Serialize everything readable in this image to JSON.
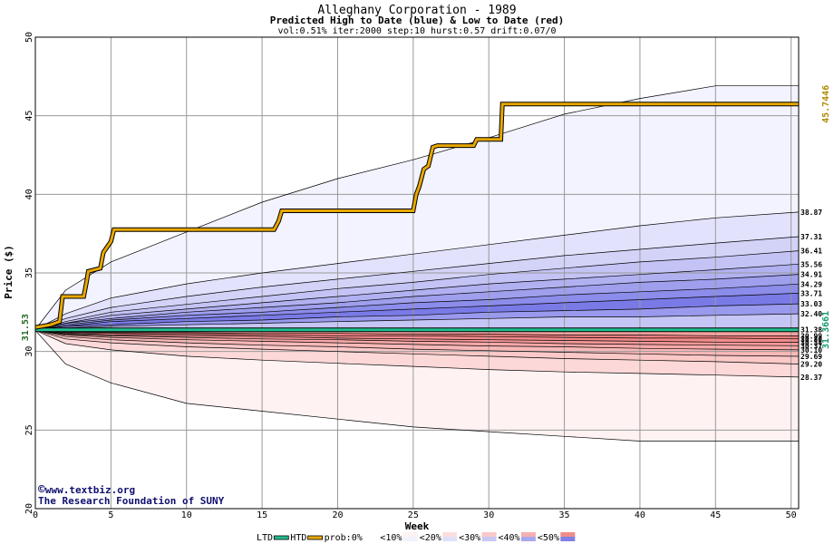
{
  "chart_data": {
    "type": "area",
    "title": "Alleghany Corporation - 1989",
    "subtitle": "Predicted High to Date (blue) &  Low to Date (red)",
    "params": "vol:0.51% iter:2000 step:10 hurst:0.57 drift:0.07/0",
    "xlabel": "Week",
    "ylabel": "Price ($)",
    "xlim": [
      0,
      50.5
    ],
    "ylim": [
      20,
      50
    ],
    "x_ticks": [
      0,
      5,
      10,
      15,
      20,
      25,
      30,
      35,
      40,
      45,
      50
    ],
    "y_ticks": [
      20,
      25,
      30,
      35,
      40,
      45,
      50
    ],
    "grid": true,
    "start_value": "31.53",
    "ltd_current": "31.3661",
    "htd_current": "45.7446",
    "htd_bands": {
      "x": [
        0,
        2,
        5,
        10,
        15,
        20,
        25,
        30,
        35,
        40,
        45,
        50.5
      ],
      "levels": [
        {
          "label": "",
          "values": [
            31.4,
            33.9,
            35.7,
            37.6,
            39.5,
            41.0,
            42.2,
            43.6,
            45.1,
            46.1,
            46.9,
            46.9
          ]
        },
        {
          "label": "38.87",
          "values": [
            31.4,
            32.4,
            33.4,
            34.3,
            35.0,
            35.6,
            36.2,
            36.8,
            37.4,
            38.0,
            38.5,
            38.87
          ]
        },
        {
          "label": "37.31",
          "values": [
            31.4,
            32.1,
            32.8,
            33.5,
            34.1,
            34.6,
            35.1,
            35.6,
            36.1,
            36.5,
            36.9,
            37.31
          ]
        },
        {
          "label": "36.41",
          "values": [
            31.4,
            31.9,
            32.5,
            33.0,
            33.5,
            34.0,
            34.4,
            34.9,
            35.3,
            35.7,
            36.0,
            36.41
          ]
        },
        {
          "label": "35.56",
          "values": [
            31.4,
            31.8,
            32.3,
            32.7,
            33.1,
            33.5,
            33.9,
            34.3,
            34.6,
            34.9,
            35.2,
            35.56
          ]
        },
        {
          "label": "34.91",
          "values": [
            31.4,
            31.8,
            32.1,
            32.5,
            32.8,
            33.1,
            33.5,
            33.8,
            34.1,
            34.4,
            34.6,
            34.91
          ]
        },
        {
          "label": "34.29",
          "values": [
            31.4,
            31.7,
            32.0,
            32.3,
            32.5,
            32.8,
            33.1,
            33.3,
            33.6,
            33.8,
            34.0,
            34.29
          ]
        },
        {
          "label": "33.71",
          "values": [
            31.4,
            31.6,
            31.9,
            32.1,
            32.3,
            32.5,
            32.7,
            32.9,
            33.1,
            33.3,
            33.5,
            33.71
          ]
        },
        {
          "label": "33.03",
          "values": [
            31.4,
            31.6,
            31.7,
            31.9,
            32.0,
            32.2,
            32.3,
            32.5,
            32.6,
            32.7,
            32.9,
            33.03
          ]
        },
        {
          "label": "32.40",
          "values": [
            31.4,
            31.5,
            31.6,
            31.7,
            31.8,
            31.9,
            32.0,
            32.1,
            32.2,
            32.2,
            32.3,
            32.4
          ]
        }
      ],
      "fills": [
        "#f3f3ff",
        "#e2e2fc",
        "#d3d3f8",
        "#c3c3f5",
        "#b1b1f2",
        "#9f9fee",
        "#8c8cea",
        "#7a7ae7",
        "#9999ee",
        "#c6c6f6"
      ]
    },
    "ltd_bands": {
      "x": [
        0,
        2,
        5,
        10,
        15,
        20,
        25,
        30,
        35,
        40,
        45,
        50.5
      ],
      "levels": [
        {
          "label": "",
          "values": [
            31.35,
            29.2,
            28.0,
            26.7,
            26.2,
            25.7,
            25.2,
            24.9,
            24.6,
            24.3,
            24.3,
            24.3
          ]
        },
        {
          "label": "28.37",
          "values": [
            31.35,
            30.5,
            30.1,
            29.7,
            29.45,
            29.25,
            29.05,
            28.85,
            28.7,
            28.6,
            28.5,
            28.37
          ]
        },
        {
          "label": "29.20",
          "values": [
            31.35,
            30.8,
            30.55,
            30.3,
            30.15,
            30.0,
            29.85,
            29.7,
            29.55,
            29.45,
            29.35,
            29.2
          ]
        },
        {
          "label": "29.69",
          "values": [
            31.35,
            30.95,
            30.75,
            30.55,
            30.4,
            30.3,
            30.15,
            30.05,
            29.95,
            29.85,
            29.75,
            29.69
          ]
        },
        {
          "label": "30.10",
          "values": [
            31.35,
            31.05,
            30.9,
            30.75,
            30.65,
            30.55,
            30.45,
            30.35,
            30.3,
            30.2,
            30.15,
            30.1
          ]
        },
        {
          "label": "30.37",
          "values": [
            31.35,
            31.1,
            31.0,
            30.9,
            30.8,
            30.75,
            30.65,
            30.6,
            30.5,
            30.45,
            30.4,
            30.37
          ]
        },
        {
          "label": "30.58",
          "values": [
            31.35,
            31.15,
            31.05,
            31.0,
            30.95,
            30.85,
            30.8,
            30.75,
            30.7,
            30.65,
            30.6,
            30.58
          ]
        },
        {
          "label": "30.80",
          "values": [
            31.35,
            31.2,
            31.15,
            31.1,
            31.05,
            31.0,
            31.0,
            30.95,
            30.9,
            30.85,
            30.85,
            30.8
          ]
        },
        {
          "label": "30.99",
          "values": [
            31.35,
            31.25,
            31.2,
            31.2,
            31.15,
            31.15,
            31.1,
            31.1,
            31.05,
            31.05,
            31.0,
            30.99
          ]
        },
        {
          "label": "31.38",
          "values": [
            31.38,
            31.38,
            31.38,
            31.38,
            31.38,
            31.38,
            31.38,
            31.38,
            31.38,
            31.38,
            31.38,
            31.38
          ]
        }
      ],
      "fills": [
        "#fff2f2",
        "#fdd8d8",
        "#fbc8c8",
        "#f9b8b8",
        "#f7a8a8",
        "#f59999",
        "#f38a8a",
        "#f17e7e",
        "#f4a0a0",
        "#f8c4c4"
      ]
    },
    "htd_path": {
      "name": "HTD",
      "color": "#e8a800",
      "points": [
        [
          0,
          31.53
        ],
        [
          1.0,
          31.7
        ],
        [
          1.6,
          31.9
        ],
        [
          1.8,
          33.5
        ],
        [
          3.2,
          33.5
        ],
        [
          3.4,
          34.5
        ],
        [
          3.5,
          35.1
        ],
        [
          4.3,
          35.3
        ],
        [
          4.5,
          36.3
        ],
        [
          5.0,
          37.0
        ],
        [
          5.2,
          37.75
        ],
        [
          15.8,
          37.75
        ],
        [
          16.1,
          38.3
        ],
        [
          16.3,
          38.95
        ],
        [
          25.0,
          38.95
        ],
        [
          25.2,
          40.0
        ],
        [
          25.4,
          40.5
        ],
        [
          25.7,
          41.6
        ],
        [
          26.0,
          41.8
        ],
        [
          26.3,
          43.0
        ],
        [
          26.6,
          43.1
        ],
        [
          29.0,
          43.1
        ],
        [
          29.2,
          43.5
        ],
        [
          30.8,
          43.5
        ],
        [
          30.9,
          45.75
        ],
        [
          50.5,
          45.75
        ]
      ]
    },
    "ltd_path": {
      "name": "LTD",
      "color": "#20c090",
      "points": [
        [
          0,
          31.38
        ],
        [
          50.5,
          31.38
        ]
      ]
    },
    "legend": {
      "items": [
        "LTD",
        "HTD",
        "prob:0%",
        "<10%",
        "<20%",
        "<30%",
        "<40%",
        "<50%"
      ],
      "colors": [
        "#20c090",
        "#e8a800",
        "#ffffff",
        "#f2f2fc",
        "#e0e0f8",
        "#c8c8f4",
        "#a8a8ee",
        "#8080e6"
      ],
      "red_colors": [
        "#ffffff",
        "#fff2f2",
        "#fcdede",
        "#f9c8c8",
        "#f5b0b0",
        "#f18c8c"
      ]
    }
  },
  "credits": {
    "line1": "www.textbiz.org",
    "line2": "The Research Foundation of SUNY",
    "copyright_symbol": "©"
  }
}
